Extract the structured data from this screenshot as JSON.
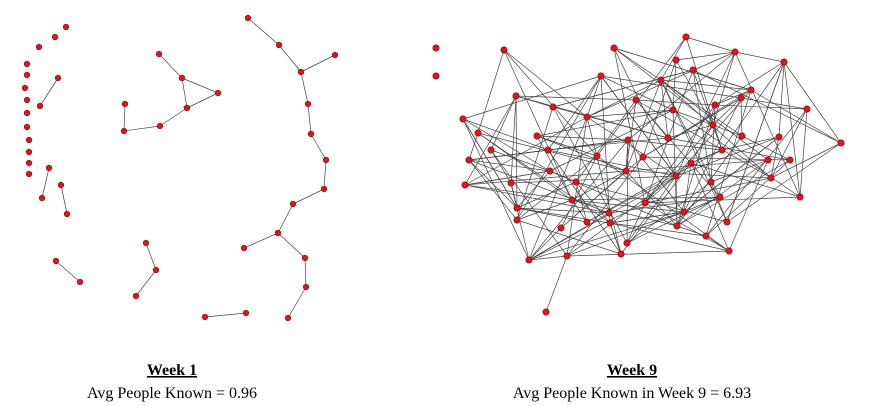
{
  "panels": [
    {
      "title": "Week 1",
      "caption": "Avg People Known = 0.96"
    },
    {
      "title": "Week 9",
      "caption": "Avg People Known in Week 9 = 6.93"
    }
  ]
}
